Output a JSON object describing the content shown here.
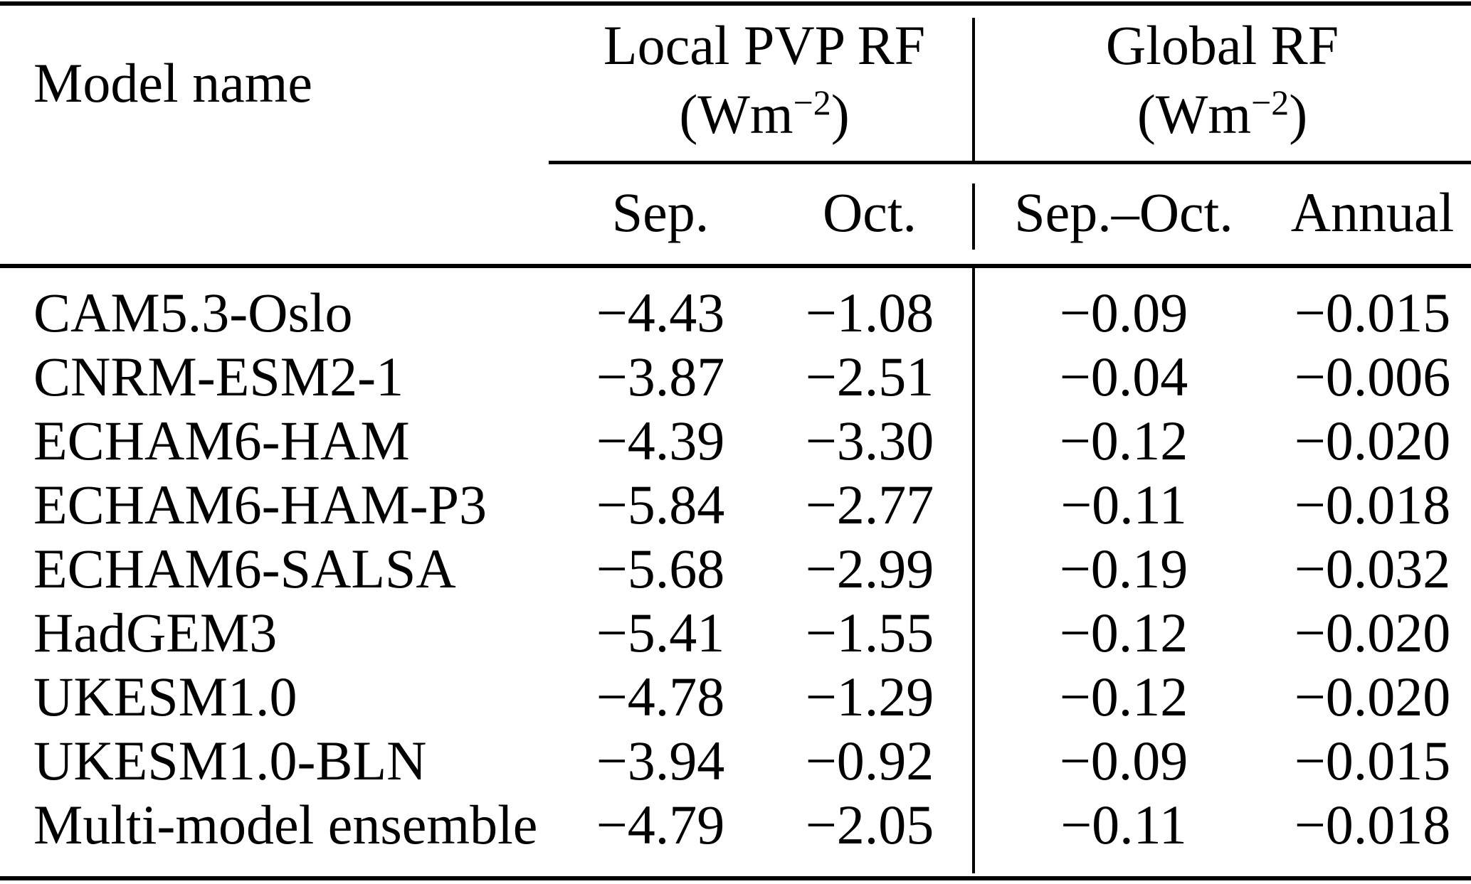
{
  "figure": {
    "background": "#ffffff",
    "text_color": "#000000"
  },
  "table": {
    "model_col_header": "Model name",
    "groups": [
      {
        "title": "Local PVP RF",
        "unit": {
          "open": "(Wm",
          "sup": "−2",
          "close": ")"
        },
        "subcols": [
          "Sep.",
          "Oct."
        ]
      },
      {
        "title": "Global RF",
        "unit": {
          "open": "(Wm",
          "sup": "−2",
          "close": ")"
        },
        "subcols": [
          "Sep.–Oct.",
          "Annual"
        ]
      }
    ],
    "rows": [
      {
        "model": "CAM5.3-Oslo",
        "values": [
          "−4.43",
          "−1.08",
          "−0.09",
          "−0.015"
        ]
      },
      {
        "model": "CNRM-ESM2-1",
        "values": [
          "−3.87",
          "−2.51",
          "−0.04",
          "−0.006"
        ]
      },
      {
        "model": "ECHAM6-HAM",
        "values": [
          "−4.39",
          "−3.30",
          "−0.12",
          "−0.020"
        ]
      },
      {
        "model": "ECHAM6-HAM-P3",
        "values": [
          "−5.84",
          "−2.77",
          "−0.11",
          "−0.018"
        ]
      },
      {
        "model": "ECHAM6-SALSA",
        "values": [
          "−5.68",
          "−2.99",
          "−0.19",
          "−0.032"
        ]
      },
      {
        "model": "HadGEM3",
        "values": [
          "−5.41",
          "−1.55",
          "−0.12",
          "−0.020"
        ]
      },
      {
        "model": "UKESM1.0",
        "values": [
          "−4.78",
          "−1.29",
          "−0.12",
          "−0.020"
        ]
      },
      {
        "model": "UKESM1.0-BLN",
        "values": [
          "−3.94",
          "−0.92",
          "−0.09",
          "−0.015"
        ]
      },
      {
        "model": "Multi-model ensemble",
        "values": [
          "−4.79",
          "−2.05",
          "−0.11",
          "−0.018"
        ]
      }
    ]
  }
}
